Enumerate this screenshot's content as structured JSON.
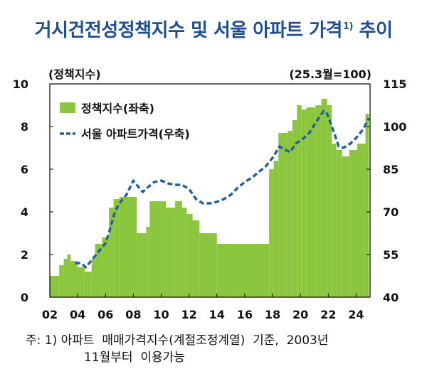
{
  "title": {
    "main": "거시건전성정책지수 및 서울 아파트 가격",
    "superscript": "1)",
    "tail": " 추이"
  },
  "footnote": {
    "line1": "주: 1) 아파트  매매가격지수(계절조정계열)  기준,  2003년",
    "line2": "11월부터  이용가능"
  },
  "colors": {
    "bar": "#8cc63f",
    "line": "#1f5fa8",
    "title": "#1f4e97"
  },
  "chart_data": {
    "type": "bar+line",
    "left_axis_label": "(정책지수)",
    "right_axis_label": "(25.3월=100)",
    "left_ylim": [
      0,
      10
    ],
    "left_ticks": [
      "0",
      "2",
      "4",
      "6",
      "8",
      "10"
    ],
    "right_ylim": [
      40,
      115
    ],
    "right_ticks": [
      "40",
      "55",
      "70",
      "85",
      "100",
      "115"
    ],
    "x_range": [
      2002,
      2025
    ],
    "x_ticks": [
      "02",
      "04",
      "06",
      "08",
      "10",
      "12",
      "14",
      "16",
      "18",
      "20",
      "22",
      "24"
    ],
    "legend": {
      "bar_label": "정책지수(좌축)",
      "line_label": "서울 아파트가격(우축)"
    },
    "policy_index_steps": [
      [
        2002.0,
        1.0
      ],
      [
        2002.67,
        1.5
      ],
      [
        2003.0,
        1.8
      ],
      [
        2003.25,
        2.0
      ],
      [
        2003.5,
        1.7
      ],
      [
        2004.0,
        1.4
      ],
      [
        2004.5,
        1.2
      ],
      [
        2005.0,
        1.8
      ],
      [
        2005.25,
        2.5
      ],
      [
        2005.75,
        2.8
      ],
      [
        2006.25,
        4.2
      ],
      [
        2006.58,
        4.6
      ],
      [
        2007.0,
        4.7
      ],
      [
        2007.75,
        4.7
      ],
      [
        2008.25,
        3.0
      ],
      [
        2008.92,
        3.3
      ],
      [
        2009.17,
        4.5
      ],
      [
        2010.0,
        4.5
      ],
      [
        2010.33,
        4.2
      ],
      [
        2011.0,
        4.5
      ],
      [
        2011.5,
        4.2
      ],
      [
        2011.83,
        3.9
      ],
      [
        2012.25,
        3.6
      ],
      [
        2012.75,
        3.0
      ],
      [
        2014.0,
        2.5
      ],
      [
        2017.75,
        6.0
      ],
      [
        2018.08,
        6.4
      ],
      [
        2018.42,
        7.7
      ],
      [
        2019.08,
        7.8
      ],
      [
        2019.42,
        8.3
      ],
      [
        2019.75,
        9.0
      ],
      [
        2020.08,
        8.8
      ],
      [
        2020.42,
        8.9
      ],
      [
        2021.08,
        9.0
      ],
      [
        2021.5,
        9.3
      ],
      [
        2021.92,
        9.0
      ],
      [
        2022.25,
        7.2
      ],
      [
        2022.58,
        6.9
      ],
      [
        2023.0,
        6.6
      ],
      [
        2023.5,
        6.9
      ],
      [
        2024.08,
        7.2
      ],
      [
        2024.67,
        8.6
      ],
      [
        2024.92,
        8.6
      ]
    ],
    "seoul_apt_price": [
      [
        2003.83,
        52
      ],
      [
        2004.25,
        52
      ],
      [
        2004.58,
        50.5
      ],
      [
        2005.0,
        53
      ],
      [
        2005.5,
        56
      ],
      [
        2006.0,
        59
      ],
      [
        2006.33,
        64
      ],
      [
        2006.67,
        70
      ],
      [
        2007.0,
        73
      ],
      [
        2007.5,
        76
      ],
      [
        2008.0,
        81
      ],
      [
        2008.33,
        79
      ],
      [
        2008.67,
        77
      ],
      [
        2009.0,
        78.5
      ],
      [
        2009.5,
        80.5
      ],
      [
        2010.0,
        81
      ],
      [
        2010.5,
        80
      ],
      [
        2011.0,
        79.5
      ],
      [
        2011.5,
        79.5
      ],
      [
        2012.0,
        78
      ],
      [
        2012.5,
        74.5
      ],
      [
        2013.0,
        73
      ],
      [
        2013.5,
        73
      ],
      [
        2014.0,
        73.5
      ],
      [
        2014.5,
        74.5
      ],
      [
        2015.0,
        76
      ],
      [
        2015.5,
        78.5
      ],
      [
        2016.0,
        80.5
      ],
      [
        2016.5,
        82
      ],
      [
        2017.0,
        84
      ],
      [
        2017.5,
        86
      ],
      [
        2018.0,
        89
      ],
      [
        2018.5,
        93
      ],
      [
        2018.83,
        92
      ],
      [
        2019.25,
        91
      ],
      [
        2019.67,
        94
      ],
      [
        2020.25,
        96
      ],
      [
        2020.67,
        98
      ],
      [
        2021.17,
        102
      ],
      [
        2021.67,
        105.5
      ],
      [
        2021.92,
        104.5
      ],
      [
        2022.33,
        99
      ],
      [
        2022.75,
        93
      ],
      [
        2023.08,
        92.5
      ],
      [
        2023.58,
        94
      ],
      [
        2024.0,
        96
      ],
      [
        2024.5,
        99
      ],
      [
        2024.92,
        103
      ]
    ]
  }
}
